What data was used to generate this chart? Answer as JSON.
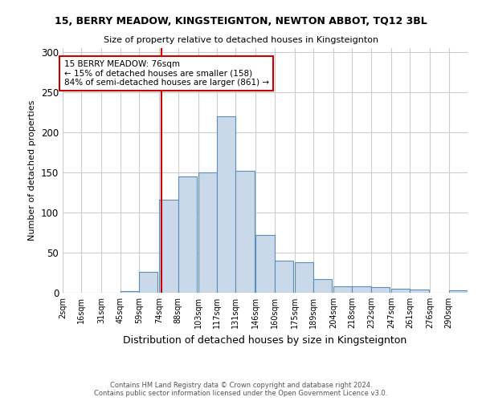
{
  "title1": "15, BERRY MEADOW, KINGSTEIGNTON, NEWTON ABBOT, TQ12 3BL",
  "title2": "Size of property relative to detached houses in Kingsteignton",
  "xlabel": "Distribution of detached houses by size in Kingsteignton",
  "ylabel": "Number of detached properties",
  "footnote": "Contains HM Land Registry data © Crown copyright and database right 2024.\nContains public sector information licensed under the Open Government Licence v3.0.",
  "bin_labels": [
    "2sqm",
    "16sqm",
    "31sqm",
    "45sqm",
    "59sqm",
    "74sqm",
    "88sqm",
    "103sqm",
    "117sqm",
    "131sqm",
    "146sqm",
    "160sqm",
    "175sqm",
    "189sqm",
    "204sqm",
    "218sqm",
    "232sqm",
    "247sqm",
    "261sqm",
    "276sqm",
    "290sqm"
  ],
  "bin_edges": [
    2,
    16,
    31,
    45,
    59,
    74,
    88,
    103,
    117,
    131,
    146,
    160,
    175,
    189,
    204,
    218,
    232,
    247,
    261,
    276,
    290
  ],
  "counts": [
    0,
    0,
    0,
    2,
    26,
    116,
    145,
    150,
    220,
    152,
    72,
    40,
    38,
    17,
    8,
    8,
    7,
    5,
    4,
    0,
    3
  ],
  "bar_facecolor": "#c9d9ea",
  "bar_edgecolor": "#5b8db8",
  "property_line_x": 76,
  "property_line_color": "#cc0000",
  "annotation_text": "15 BERRY MEADOW: 76sqm\n← 15% of detached houses are smaller (158)\n84% of semi-detached houses are larger (861) →",
  "annotation_box_edgecolor": "#cc0000",
  "ylim": [
    0,
    305
  ],
  "yticks": [
    0,
    50,
    100,
    150,
    200,
    250,
    300
  ],
  "background_color": "#ffffff",
  "grid_color": "#cccccc"
}
